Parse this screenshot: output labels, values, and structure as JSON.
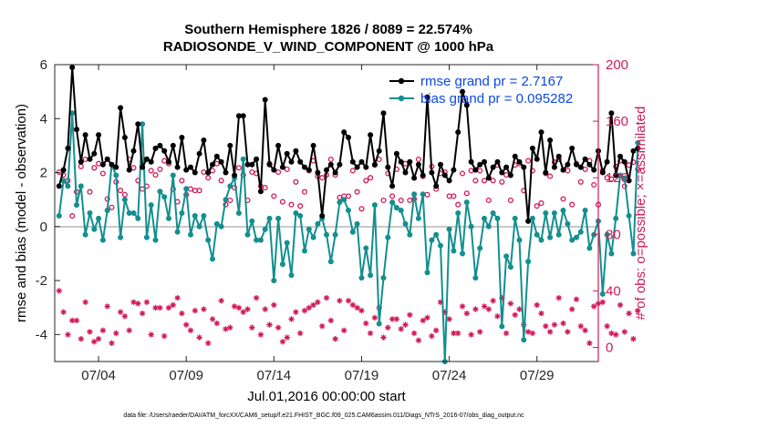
{
  "colors": {
    "rmse": "#000000",
    "bias": "#138f8f",
    "obs": "#d0195a",
    "legend_text": "#0d47e6",
    "zero_line": "#b7b7b7"
  },
  "chart_data": {
    "type": "line",
    "title_line1": "Southern Hemisphere 1826 / 8089 = 22.574%",
    "title_line2": "RADIOSONDE_V_WIND_COMPONENT @ 1000 hPa",
    "ylabel_left": "rmse and bias (model - observation)",
    "ylabel_right": "# of obs: o=possible; ×=assimilated",
    "xlabel": "Jul.01,2016 00:00:00 start",
    "footnote": "data file: /Users/raeder/DAI/ATM_forcXX/CAM6_setup/f.e21.FHIST_BGC.f09_025.CAM6assim.011/Diags_NTrS_2016-07/obs_diag_output.nc",
    "x_range_days": [
      1.5,
      32.5
    ],
    "x_ticks": [
      {
        "day": 4,
        "label": "07/04"
      },
      {
        "day": 9,
        "label": "07/09"
      },
      {
        "day": 14,
        "label": "07/14"
      },
      {
        "day": 19,
        "label": "07/19"
      },
      {
        "day": 24,
        "label": "07/24"
      },
      {
        "day": 29,
        "label": "07/29"
      }
    ],
    "ylim_left": [
      -5,
      6
    ],
    "yticks_left": [
      "6",
      "4",
      "2",
      "0",
      "-2",
      "-4"
    ],
    "yticks_left_values": [
      6,
      4,
      2,
      0,
      -2,
      -4
    ],
    "ylim_right": [
      -10,
      200
    ],
    "yticks_right": [
      "200",
      "160",
      "120",
      "80",
      "40",
      "0"
    ],
    "yticks_right_values": [
      200,
      160,
      120,
      80,
      40,
      0
    ],
    "x_start_day": 1.75,
    "x_step_days": 0.25,
    "series": [
      {
        "name": "rmse",
        "legend": "rmse grand pr = 2.7167",
        "values": [
          1.5,
          2.1,
          2.9,
          5.9,
          3.6,
          2.4,
          3.4,
          2.5,
          2.7,
          3.4,
          2.3,
          2.5,
          2.3,
          2.2,
          4.4,
          3.3,
          2.1,
          2.8,
          3.8,
          2.2,
          2.5,
          2.4,
          2.9,
          3.0,
          2.8,
          2.4,
          3.0,
          2.2,
          3.3,
          2.1,
          2.2,
          2.0,
          2.7,
          3.2,
          2.0,
          2.3,
          2.6,
          2.4,
          2.0,
          3.0,
          1.9,
          4.1,
          4.1,
          2.3,
          2.3,
          2.5,
          1.3,
          4.7,
          2.3,
          2.1,
          3.0,
          2.2,
          2.7,
          2.4,
          2.8,
          2.4,
          2.2,
          2.1,
          3.0,
          2.0,
          0.4,
          2.1,
          2.3,
          2.0,
          2.3,
          3.5,
          3.3,
          2.4,
          2.2,
          2.4,
          2.2,
          3.4,
          2.3,
          2.8,
          4.2,
          2.2,
          1.5,
          2.7,
          2.4,
          2.0,
          2.4,
          1.8,
          2.3,
          1.9,
          4.8,
          2.0,
          1.5,
          2.3,
          1.9,
          1.7,
          2.1,
          3.5,
          5.0,
          4.5,
          2.4,
          2.1,
          2.3,
          2.4,
          1.8,
          2.2,
          2.4,
          2.0,
          2.2,
          1.9,
          2.6,
          2.4,
          2.2,
          0.2,
          2.9,
          2.5,
          3.5,
          2.0,
          3.2,
          2.2,
          2.6,
          2.1,
          2.3,
          2.9,
          2.3,
          2.2,
          2.5,
          2.3,
          2.1,
          2.8,
          2.0,
          2.4,
          4.2,
          1.9,
          2.6,
          2.4,
          1.7,
          2.8,
          2.9
        ]
      },
      {
        "name": "bias",
        "legend": "bias grand pr = 0.095282",
        "values": [
          0.4,
          1.7,
          1.5,
          4.2,
          0.8,
          1.5,
          -0.3,
          0.5,
          -0.1,
          0.3,
          -0.5,
          0.6,
          2.3,
          1.9,
          -0.4,
          1.0,
          0.5,
          0.5,
          0.3,
          3.8,
          -0.4,
          0.8,
          -0.5,
          1.3,
          1.1,
          0.3,
          1.9,
          -0.2,
          0.5,
          1.4,
          -0.3,
          0.4,
          0.0,
          0.4,
          -0.5,
          -1.2,
          0.1,
          0.0,
          1.0,
          1.5,
          1.8,
          0.5,
          2.5,
          -0.3,
          0.2,
          -0.5,
          -0.5,
          -0.1,
          0.3,
          -2.0,
          0.3,
          -1.4,
          -0.6,
          -1.8,
          0.5,
          0.4,
          -0.9,
          -0.1,
          -0.4,
          0.1,
          0.3,
          -0.3,
          -1.3,
          -0.3,
          0.9,
          1.0,
          0.6,
          -0.2,
          0.1,
          -1.9,
          -0.8,
          -1.8,
          0.8,
          -3.6,
          -1.9,
          -0.4,
          0.9,
          0.7,
          0.6,
          0.1,
          -0.3,
          1.2,
          0.3,
          1.2,
          -1.7,
          -0.5,
          -0.3,
          -0.7,
          -5.0,
          -0.1,
          -0.9,
          0.5,
          -1.0,
          0.9,
          0.0,
          -1.9,
          -0.8,
          0.3,
          0.0,
          0.5,
          0.3,
          -3.7,
          -1.1,
          -1.5,
          0.3,
          -0.5,
          -4.2,
          -1.3,
          0.3,
          -0.3,
          -0.5,
          0.5,
          -0.4,
          0.5,
          -0.3,
          0.6,
          0.1,
          -0.5,
          -0.4,
          -0.2,
          0.6,
          -0.8,
          -0.3,
          0.2,
          -2.5,
          -0.3,
          -1.0,
          0.3,
          1.9,
          1.8,
          0.4,
          -1.0,
          3.1
        ]
      },
      {
        "name": "obs possible",
        "legend": "o = possible",
        "values": [
          124,
          122,
          118,
          93,
          110,
          128,
          133,
          110,
          127,
          130,
          123,
          105,
          99,
          117,
          111,
          108,
          133,
          127,
          118,
          112,
          114,
          125,
          122,
          126,
          132,
          130,
          112,
          103,
          118,
          108,
          112,
          111,
          111,
          124,
          120,
          125,
          130,
          118,
          101,
          104,
          113,
          127,
          122,
          104,
          124,
          123,
          114,
          113,
          130,
          107,
          124,
          103,
          126,
          101,
          117,
          100,
          110,
          125,
          132,
          121,
          120,
          122,
          133,
          122,
          106,
          107,
          107,
          125,
          110,
          98,
          118,
          120,
          129,
          133,
          104,
          123,
          107,
          126,
          104,
          130,
          104,
          105,
          133,
          121,
          108,
          128,
          112,
          123,
          124,
          107,
          107,
          101,
          123,
          109,
          125,
          118,
          125,
          118,
          104,
          118,
          129,
          117,
          122,
          104,
          129,
          130,
          111,
          132,
          125,
          100,
          102,
          123,
          121,
          131,
          133,
          105,
          125,
          101,
          130,
          117,
          126,
          132,
          115,
          101,
          125,
          120,
          119,
          128,
          132,
          114,
          129,
          131,
          126
        ]
      },
      {
        "name": "obs assimilated",
        "legend": "× = assimilated",
        "values": [
          40,
          25,
          9,
          19,
          19,
          6,
          32,
          11,
          4,
          6,
          12,
          29,
          3,
          10,
          25,
          22,
          12,
          32,
          31,
          24,
          32,
          9,
          28,
          28,
          8,
          28,
          30,
          35,
          24,
          16,
          12,
          26,
          7,
          27,
          3,
          20,
          17,
          33,
          13,
          14,
          29,
          28,
          25,
          27,
          14,
          35,
          9,
          27,
          16,
          30,
          14,
          4,
          7,
          20,
          25,
          10,
          26,
          28,
          30,
          32,
          15,
          35,
          19,
          6,
          33,
          12,
          33,
          30,
          28,
          26,
          17,
          10,
          21,
          28,
          7,
          14,
          20,
          20,
          13,
          16,
          23,
          10,
          5,
          19,
          21,
          8,
          12,
          32,
          25,
          20,
          10,
          10,
          29,
          24,
          9,
          27,
          11,
          29,
          27,
          33,
          22,
          35,
          10,
          31,
          23,
          27,
          16,
          11,
          10,
          30,
          24,
          15,
          11,
          16,
          35,
          17,
          11,
          27,
          34,
          15,
          12,
          3,
          29,
          31,
          32,
          15,
          10,
          9,
          30,
          11,
          24,
          6,
          26
        ]
      }
    ]
  }
}
